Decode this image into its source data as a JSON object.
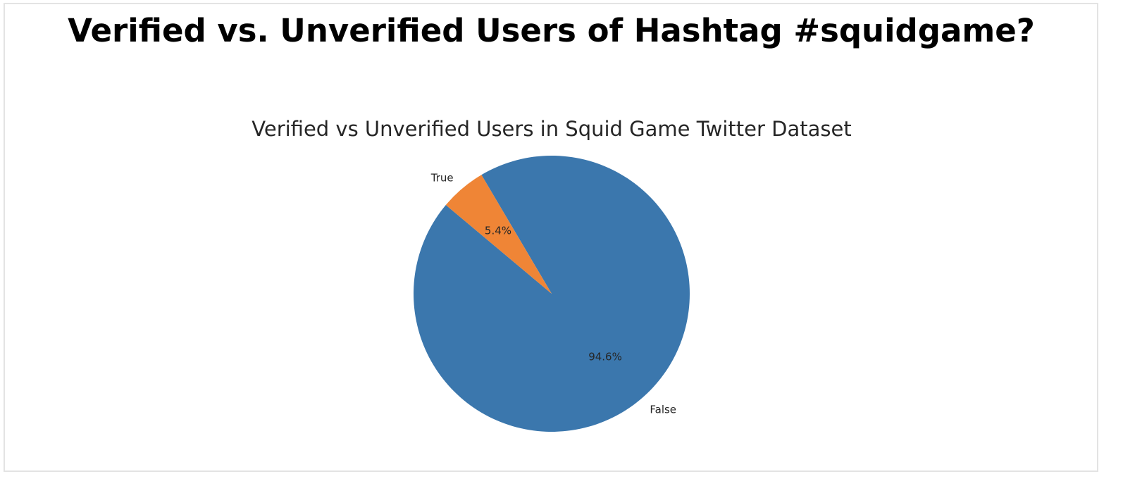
{
  "page": {
    "title": "Verified vs. Unverified Users of Hashtag #squidgame?"
  },
  "chart_data": {
    "type": "pie",
    "title": "Verified vs Unverified Users in Squid Game Twitter Dataset",
    "categories": [
      "False",
      "True"
    ],
    "values": [
      94.6,
      5.4
    ],
    "value_labels": [
      "94.6%",
      "5.4%"
    ],
    "colors": [
      "#3b77ad",
      "#ef8536"
    ],
    "start_angle_deg": 140,
    "direction": "counterclockwise"
  }
}
